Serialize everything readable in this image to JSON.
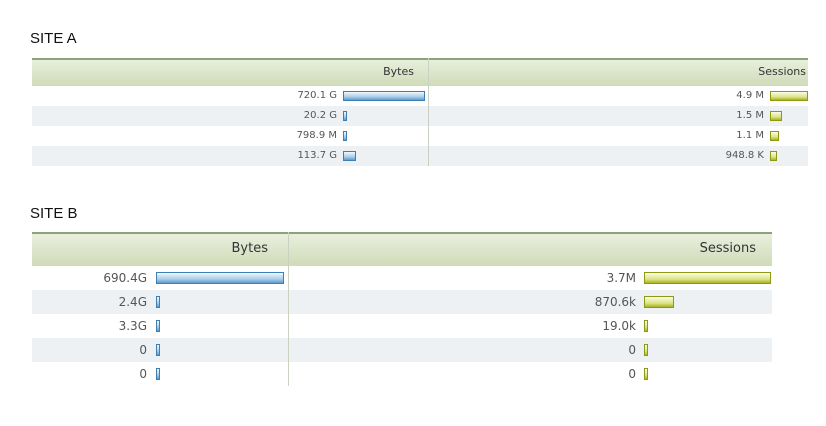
{
  "sites": [
    {
      "title": "SITE A",
      "headers": [
        "Bytes",
        "Sessions"
      ],
      "rows": [
        {
          "bytes": {
            "value": 720100000000,
            "label": "720.1 G"
          },
          "sessions": {
            "value": 4900000,
            "label": "4.9 M"
          }
        },
        {
          "bytes": {
            "value": 20200000000,
            "label": "20.2 G"
          },
          "sessions": {
            "value": 1500000,
            "label": "1.5 M"
          }
        },
        {
          "bytes": {
            "value": 798900000,
            "label": "798.9 M"
          },
          "sessions": {
            "value": 1100000,
            "label": "1.1 M"
          }
        },
        {
          "bytes": {
            "value": 113700000000,
            "label": "113.7 G"
          },
          "sessions": {
            "value": 948800,
            "label": "948.8 K"
          }
        }
      ]
    },
    {
      "title": "SITE B",
      "headers": [
        "Bytes",
        "Sessions"
      ],
      "rows": [
        {
          "bytes": {
            "value": 690400000000,
            "label": "690.4G"
          },
          "sessions": {
            "value": 3700000,
            "label": "3.7M"
          }
        },
        {
          "bytes": {
            "value": 2400000000,
            "label": "2.4G"
          },
          "sessions": {
            "value": 870600,
            "label": "870.6k"
          }
        },
        {
          "bytes": {
            "value": 3300000000,
            "label": "3.3G"
          },
          "sessions": {
            "value": 19000,
            "label": "19.0k"
          }
        },
        {
          "bytes": {
            "value": 0,
            "label": "0"
          },
          "sessions": {
            "value": 0,
            "label": "0"
          }
        },
        {
          "bytes": {
            "value": 0,
            "label": "0"
          },
          "sessions": {
            "value": 0,
            "label": "0"
          }
        }
      ]
    }
  ]
}
